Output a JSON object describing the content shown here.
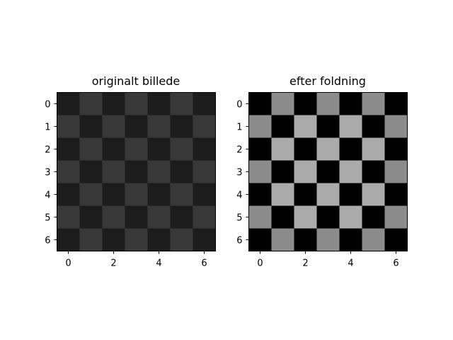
{
  "chart_data": [
    {
      "type": "heatmap",
      "title": "originalt billede",
      "xlabel": "",
      "ylabel": "",
      "xticks": [
        "0",
        "2",
        "4",
        "6"
      ],
      "yticks": [
        "0",
        "1",
        "2",
        "3",
        "4",
        "5",
        "6"
      ],
      "colormap": "gray",
      "values": [
        [
          0.11,
          0.22,
          0.11,
          0.22,
          0.11,
          0.22,
          0.11
        ],
        [
          0.22,
          0.11,
          0.22,
          0.11,
          0.22,
          0.11,
          0.22
        ],
        [
          0.11,
          0.22,
          0.11,
          0.22,
          0.11,
          0.22,
          0.11
        ],
        [
          0.22,
          0.11,
          0.22,
          0.11,
          0.22,
          0.11,
          0.22
        ],
        [
          0.11,
          0.22,
          0.11,
          0.22,
          0.11,
          0.22,
          0.11
        ],
        [
          0.22,
          0.11,
          0.22,
          0.11,
          0.22,
          0.11,
          0.22
        ],
        [
          0.11,
          0.22,
          0.11,
          0.22,
          0.11,
          0.22,
          0.11
        ]
      ]
    },
    {
      "type": "heatmap",
      "title": "efter foldning",
      "xlabel": "",
      "ylabel": "",
      "xticks": [
        "0",
        "2",
        "4",
        "6"
      ],
      "yticks": [
        "0",
        "1",
        "2",
        "3",
        "4",
        "5",
        "6"
      ],
      "colormap": "gray",
      "values": [
        [
          0.0,
          0.55,
          0.0,
          0.55,
          0.0,
          0.55,
          0.0
        ],
        [
          0.55,
          0.0,
          0.67,
          0.0,
          0.67,
          0.0,
          0.55
        ],
        [
          0.0,
          0.67,
          0.0,
          0.67,
          0.0,
          0.67,
          0.0
        ],
        [
          0.55,
          0.0,
          0.67,
          0.0,
          0.67,
          0.0,
          0.55
        ],
        [
          0.0,
          0.67,
          0.0,
          0.67,
          0.0,
          0.67,
          0.0
        ],
        [
          0.55,
          0.0,
          0.67,
          0.0,
          0.67,
          0.0,
          0.55
        ],
        [
          0.0,
          0.55,
          0.0,
          0.55,
          0.0,
          0.55,
          0.0
        ]
      ]
    }
  ]
}
